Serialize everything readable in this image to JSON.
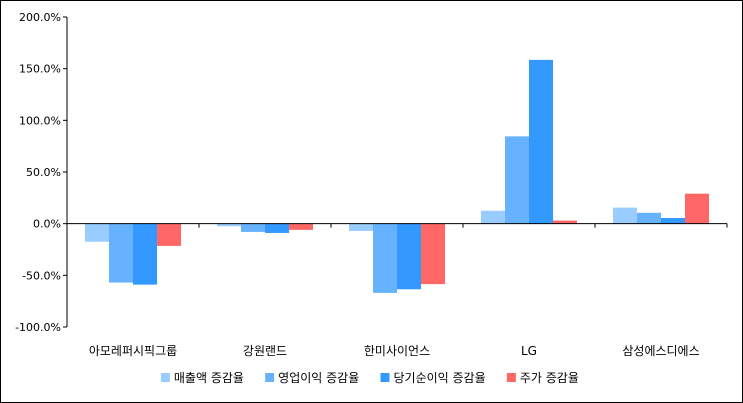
{
  "chart_data": {
    "type": "bar",
    "categories": [
      "아모레퍼시픽그룹",
      "강원랜드",
      "한미사이언스",
      "LG",
      "삼성에스디에스"
    ],
    "series": [
      {
        "name": "매출액 증감율",
        "color": "#99CCFF",
        "values": [
          -17.5,
          -2.5,
          -7.0,
          12.5,
          15.5
        ]
      },
      {
        "name": "영업이익 증감율",
        "color": "#66B2FF",
        "values": [
          -57.0,
          -8.0,
          -67.0,
          84.5,
          10.5
        ]
      },
      {
        "name": "당기순이익 증감율",
        "color": "#3399FF",
        "values": [
          -59.0,
          -9.0,
          -63.5,
          158.5,
          5.5
        ]
      },
      {
        "name": "주가 증감율",
        "color": "#FF6666",
        "values": [
          -21.5,
          -6.0,
          -58.5,
          3.0,
          29.0
        ]
      }
    ],
    "yticks": [
      "200.0%",
      "150.0%",
      "100.0%",
      "50.0%",
      "0.0%",
      "-50.0%",
      "-100.0%"
    ],
    "ylim": [
      -100,
      200
    ],
    "grid": false,
    "legend": "bottom"
  }
}
